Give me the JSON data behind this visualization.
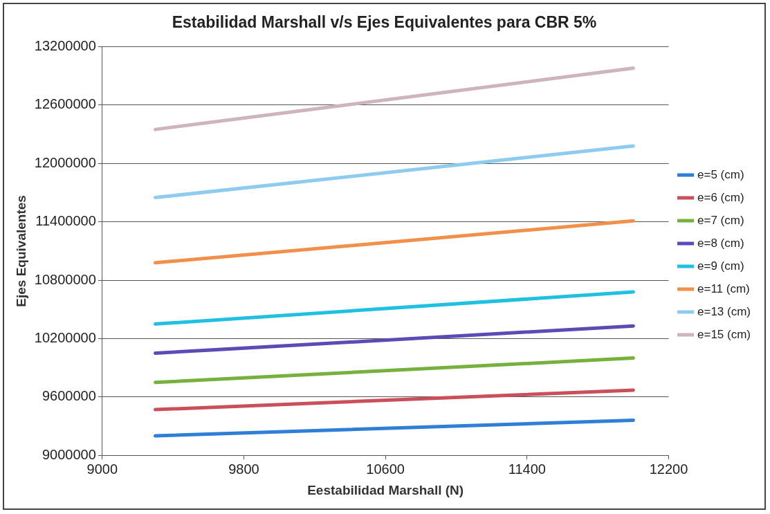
{
  "chart_data": {
    "type": "line",
    "title": "Estabilidad Marshall v/s Ejes Equivalentes para CBR 5%",
    "xlabel": "Eestabilidad Marshall (N)",
    "ylabel": "Ejes Equivalentes",
    "x": [
      9300,
      12000
    ],
    "series": [
      {
        "name": "e=5 (cm)",
        "color": "#2f7fd6",
        "values": [
          9200000,
          9360000
        ]
      },
      {
        "name": "e=6 (cm)",
        "color": "#c9505a",
        "values": [
          9470000,
          9670000
        ]
      },
      {
        "name": "e=7 (cm)",
        "color": "#77b03c",
        "values": [
          9750000,
          10000000
        ]
      },
      {
        "name": "e=8 (cm)",
        "color": "#5a4bb5",
        "values": [
          10050000,
          10330000
        ]
      },
      {
        "name": "e=9 (cm)",
        "color": "#1fc0e0",
        "values": [
          10350000,
          10680000
        ]
      },
      {
        "name": "e=11 (cm)",
        "color": "#f0904a",
        "values": [
          10980000,
          11410000
        ]
      },
      {
        "name": "e=13 (cm)",
        "color": "#8ecbef",
        "values": [
          11650000,
          12180000
        ]
      },
      {
        "name": "e=15 (cm)",
        "color": "#cdb5bb",
        "values": [
          12350000,
          12980000
        ]
      }
    ],
    "xlim": [
      9000,
      12200
    ],
    "xticks": [
      9000,
      9800,
      10600,
      11400,
      12200
    ],
    "ylim": [
      9000000,
      13200000
    ],
    "yticks": [
      9000000,
      9600000,
      10200000,
      10800000,
      11400000,
      12000000,
      12600000,
      13200000
    ],
    "grid": "y",
    "legend": "right",
    "marker": "none",
    "line_style": "solid"
  }
}
